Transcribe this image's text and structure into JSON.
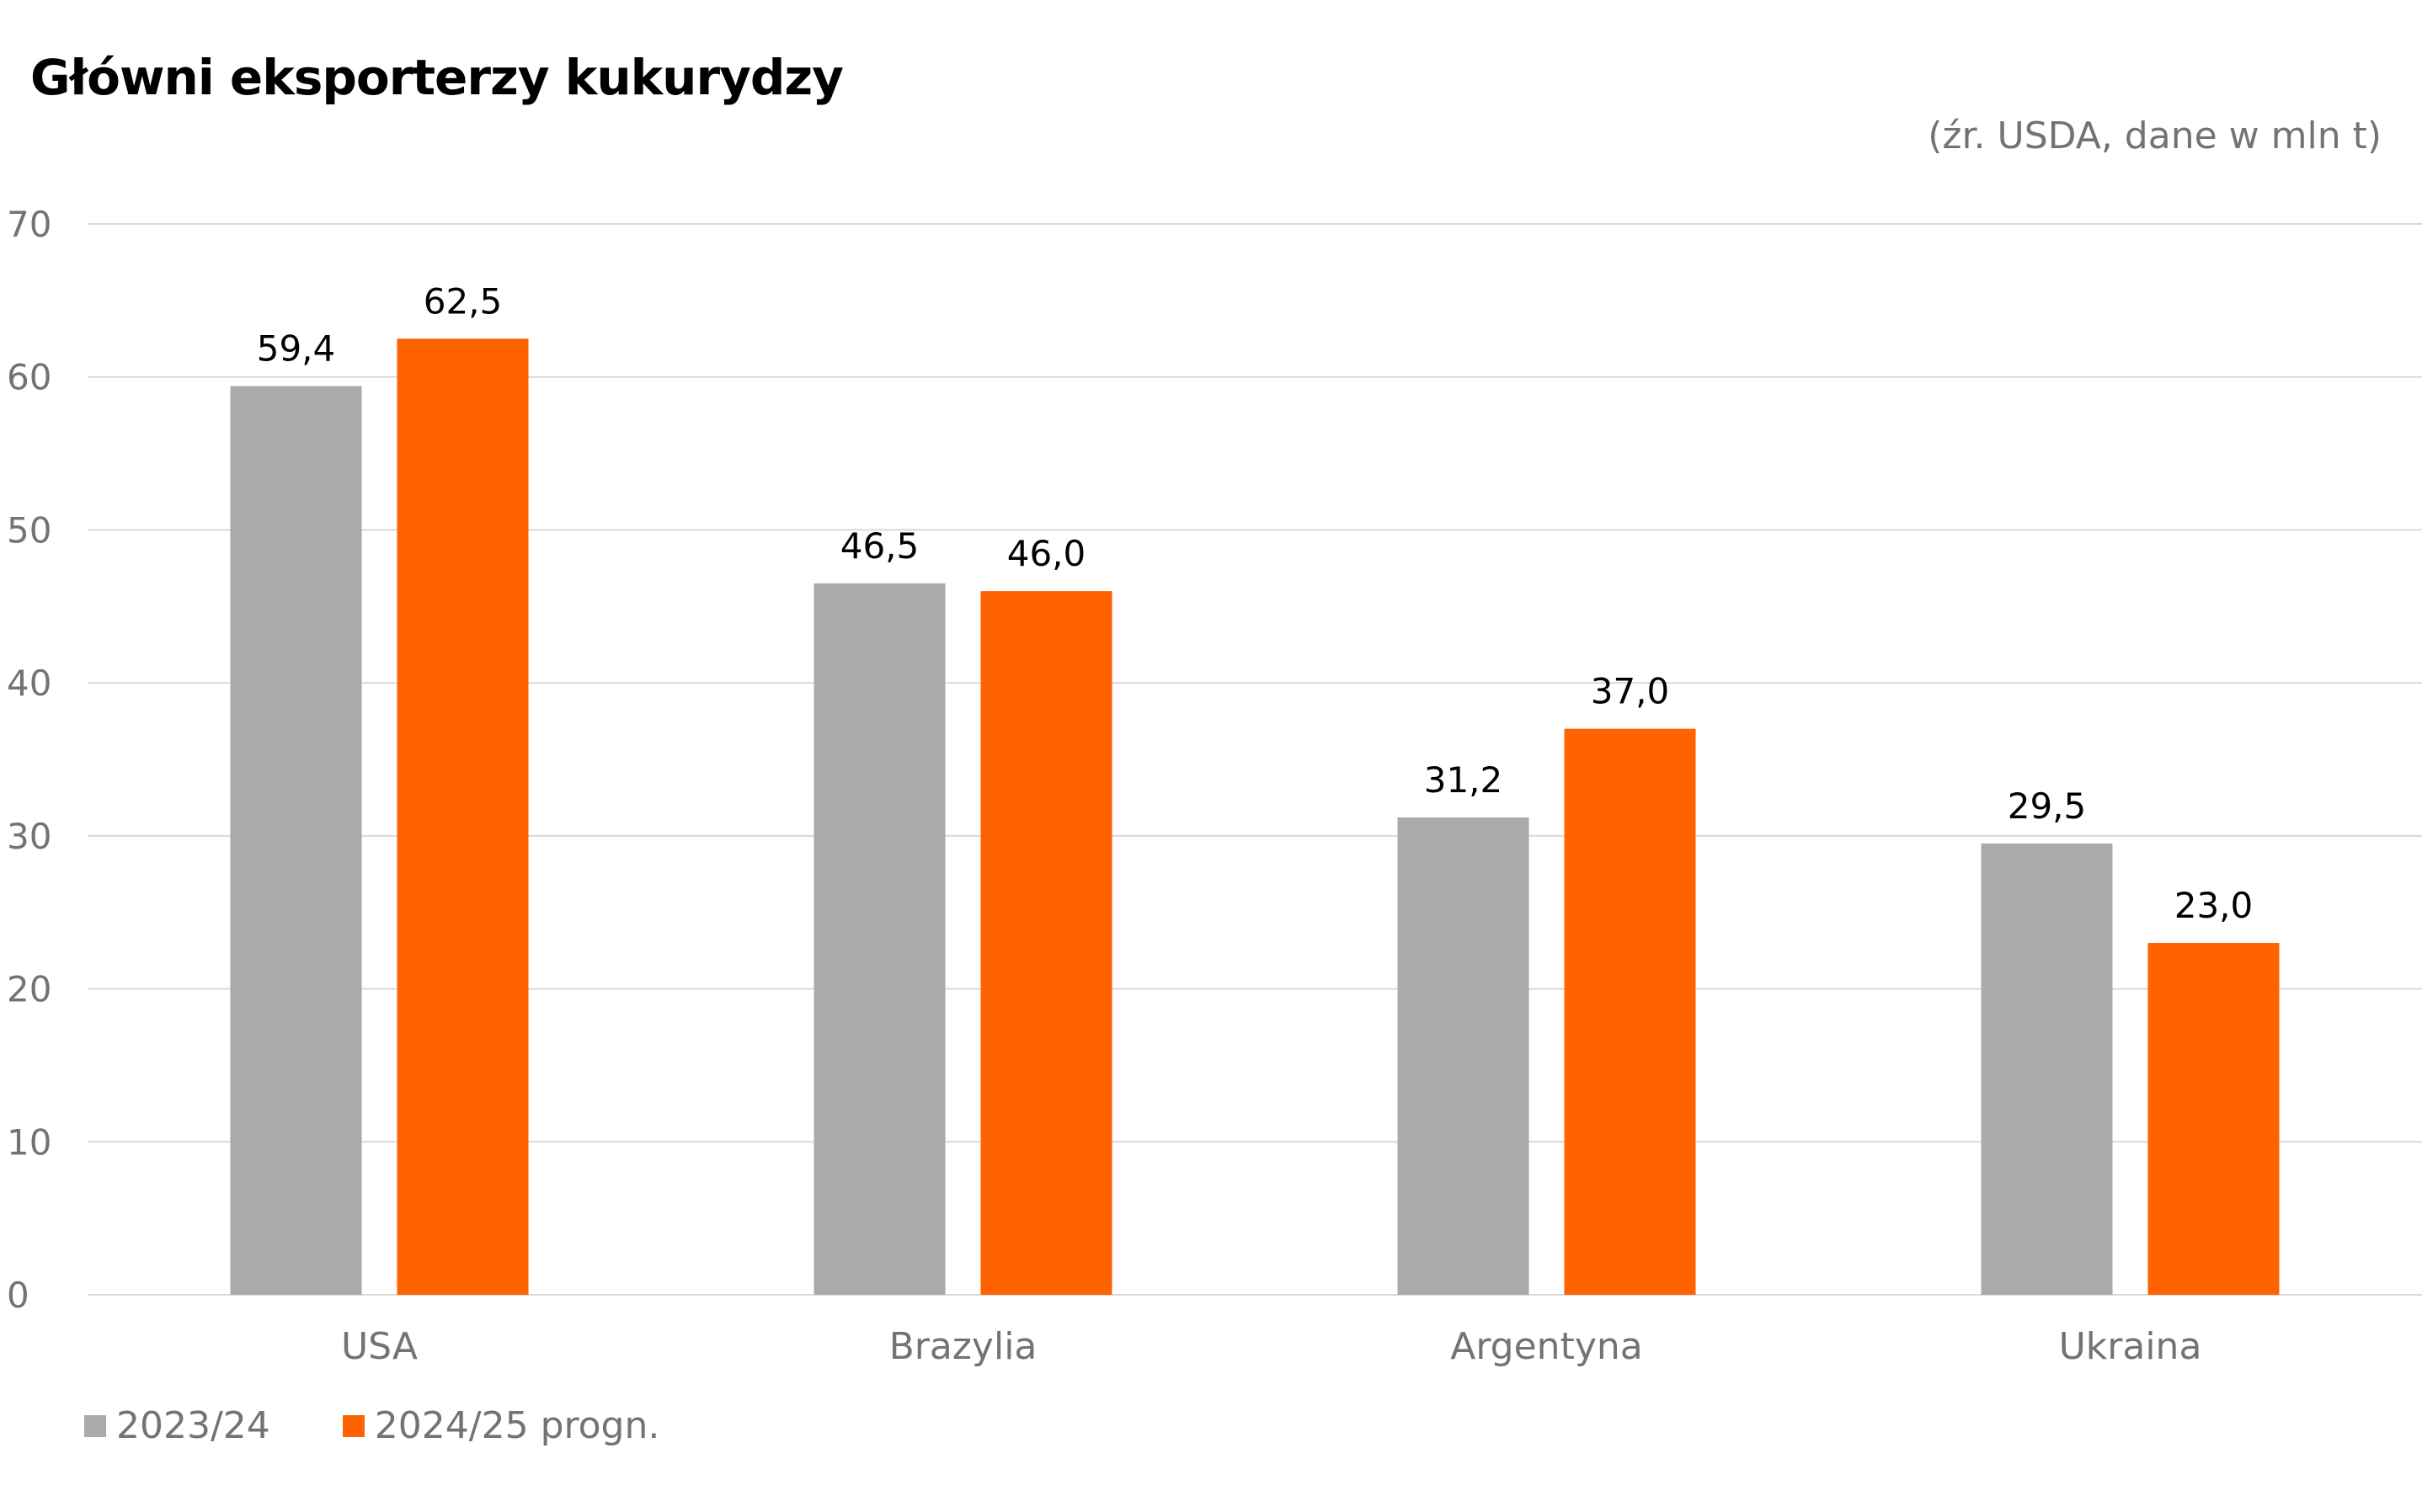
{
  "header": {
    "title": "Główni eksporterzy kukurydzy",
    "subtitle": "(źr. USDA, dane w mln t)"
  },
  "colors": {
    "series_2023": "#aaaaaa",
    "series_2024": "#ff6200",
    "grid": "#d9d9d9",
    "axis_text": "#737373",
    "label_text": "#000000"
  },
  "chart_data": {
    "type": "bar",
    "categories": [
      "USA",
      "Brazylia",
      "Argentyna",
      "Ukraina"
    ],
    "series": [
      {
        "name": "2023/24",
        "values": [
          59.4,
          46.5,
          31.2,
          29.5
        ],
        "labels": [
          "59,4",
          "46,5",
          "31,2",
          "29,5"
        ]
      },
      {
        "name": "2024/25 progn.",
        "values": [
          62.5,
          46.0,
          37.0,
          23.0
        ],
        "labels": [
          "62,5",
          "46,0",
          "37,0",
          "23,0"
        ]
      }
    ],
    "yticks": [
      0,
      10,
      20,
      30,
      40,
      50,
      60,
      70
    ],
    "ylim": [
      0,
      70
    ],
    "grid": true,
    "legend": "bottom-left"
  }
}
